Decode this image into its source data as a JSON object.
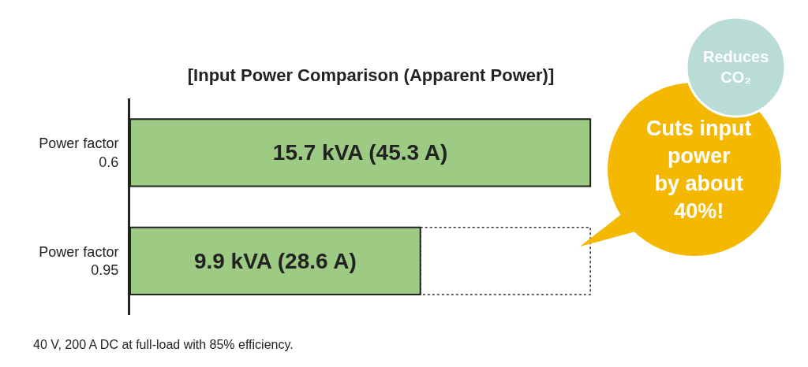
{
  "chart_data": {
    "type": "bar",
    "orientation": "horizontal",
    "title": "[Input Power Comparison (Apparent Power)]",
    "categories": [
      "Power factor\n0.6",
      "Power factor\n0.95"
    ],
    "values": [
      15.7,
      9.9
    ],
    "value_labels": [
      "15.7 kVA (45.3 A)",
      "9.9 kVA (28.6 A)"
    ],
    "color": "#9dcb84",
    "annotations": [
      "40 V, 200 A DC at full-load with 85% efficiency.",
      "Cuts input\npower\nby about\n40%!",
      "Reduces\nCO₂"
    ],
    "grid": false,
    "legend": false,
    "tick_labels": "y"
  }
}
